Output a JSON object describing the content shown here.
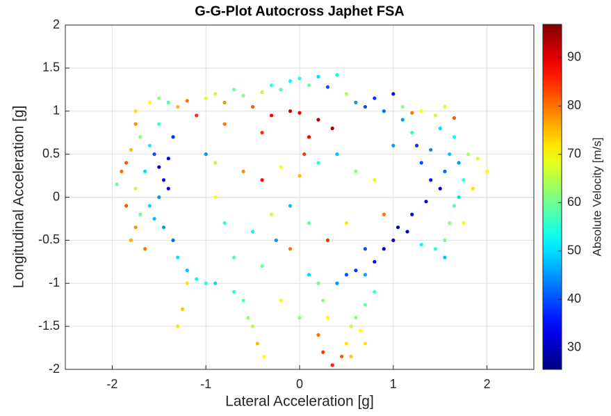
{
  "chart_data": {
    "type": "scatter",
    "title": "G-G-Plot Autocross Japhet FSA",
    "xlabel": "Lateral Acceleration [g]",
    "ylabel": "Longitudinal Acceleration [g]",
    "colorbar_label": "Absolute Velocity [m/s]",
    "colormap": "jet",
    "grid": true,
    "xlim": [
      -2.5,
      2.5
    ],
    "xticks": [
      -2,
      -1,
      0,
      1,
      2
    ],
    "ylim": [
      -2,
      2
    ],
    "yticks": [
      -2,
      -1.5,
      -1,
      -0.5,
      0,
      0.5,
      1,
      1.5,
      2
    ],
    "clim": [
      25.5,
      96.9
    ],
    "cticks": [
      30,
      40,
      50,
      60,
      70,
      80,
      90
    ],
    "x": [
      -1.75,
      -1.6,
      -1.5,
      -1.4,
      -1.3,
      -1.2,
      -1.1,
      -1.0,
      -0.9,
      -0.8,
      -0.7,
      -0.6,
      -0.5,
      -0.4,
      -0.3,
      -0.2,
      -0.1,
      0.0,
      0.1,
      0.2,
      0.3,
      0.4,
      0.5,
      0.6,
      0.7,
      0.8,
      0.9,
      1.0,
      1.1,
      1.2,
      1.3,
      1.45,
      1.55,
      1.65,
      -0.3,
      -0.1,
      0.0,
      0.2,
      0.35,
      -0.8,
      -0.4,
      0.1,
      -1.85,
      -1.9,
      -1.95,
      -1.8,
      -1.75,
      -1.7,
      -1.6,
      -1.55,
      -1.5,
      -1.45,
      -1.4,
      -1.5,
      -1.6,
      -1.7,
      -1.75,
      -1.8,
      -1.65,
      -1.55,
      -1.45,
      -1.35,
      -1.3,
      -1.2,
      -1.1,
      -1.0,
      -1.4,
      -1.35,
      -1.5,
      -1.65,
      -1.85,
      -1.75,
      1.1,
      1.2,
      1.25,
      1.3,
      1.4,
      1.5,
      1.55,
      1.6,
      1.65,
      1.7,
      1.75,
      1.7,
      1.65,
      1.6,
      1.55,
      1.45,
      1.3,
      1.15,
      1.05,
      1.2,
      1.35,
      1.8,
      1.9,
      2.0,
      1.85,
      1.75,
      1.4,
      1.5,
      1.55,
      1.0,
      -0.9,
      -0.7,
      -0.6,
      -0.55,
      -0.5,
      -0.45,
      -0.38,
      -1.2,
      -1.25,
      -1.3,
      0.2,
      0.25,
      0.3,
      0.2,
      0.25,
      0.35,
      0.45,
      0.5,
      0.55,
      0.6,
      0.65,
      0.7,
      0.55,
      0.4,
      0.5,
      0.6,
      0.7,
      0.8,
      0.9,
      1.0,
      0.8,
      0.7,
      -0.9,
      -0.6,
      -0.4,
      -0.2,
      0.0,
      0.2,
      0.4,
      0.6,
      0.8,
      -0.8,
      -0.5,
      -0.3,
      -0.1,
      0.1,
      0.3,
      0.5,
      0.7,
      -0.7,
      -0.4,
      -0.1,
      0.1,
      -0.2,
      0.0,
      -0.9,
      0.9,
      -1.0,
      0.05,
      -0.25
    ],
    "y": [
      1.0,
      1.1,
      1.15,
      1.1,
      1.05,
      1.12,
      0.95,
      1.15,
      1.2,
      1.1,
      1.25,
      1.18,
      1.05,
      1.22,
      1.3,
      1.25,
      1.35,
      1.38,
      1.3,
      1.4,
      1.28,
      1.42,
      1.2,
      1.1,
      1.05,
      1.15,
      1.0,
      1.2,
      1.05,
      0.98,
      1.0,
      0.95,
      1.05,
      0.92,
      0.95,
      1.0,
      0.98,
      0.9,
      0.8,
      0.85,
      0.75,
      0.7,
      0.4,
      0.3,
      0.15,
      0.55,
      0.85,
      0.7,
      0.6,
      0.5,
      0.35,
      0.2,
      0.1,
      0.0,
      -0.1,
      -0.2,
      -0.35,
      -0.5,
      -0.6,
      -0.25,
      -0.35,
      -0.5,
      -0.7,
      -0.85,
      -0.95,
      -1.0,
      0.45,
      0.7,
      0.85,
      0.3,
      -0.1,
      0.1,
      0.9,
      0.75,
      0.6,
      0.4,
      0.2,
      0.1,
      0.3,
      0.5,
      0.7,
      0.4,
      0.2,
      0.0,
      -0.1,
      -0.3,
      -0.5,
      -0.6,
      -0.55,
      -0.4,
      -0.35,
      -0.2,
      -0.05,
      0.5,
      0.45,
      0.3,
      0.1,
      -0.3,
      0.55,
      0.8,
      -0.7,
      0.6,
      -1.0,
      -1.1,
      -1.2,
      -1.4,
      -1.5,
      -1.7,
      -1.85,
      -1.0,
      -1.3,
      -1.5,
      -1.0,
      -1.2,
      -1.4,
      -1.6,
      -1.8,
      -1.95,
      -1.85,
      -1.7,
      -1.5,
      -1.4,
      -1.55,
      -1.7,
      -1.85,
      -1.0,
      -0.9,
      -0.85,
      -0.9,
      -0.75,
      -0.6,
      -0.5,
      -1.1,
      -1.25,
      0.4,
      0.3,
      0.2,
      0.35,
      0.25,
      0.4,
      0.5,
      0.3,
      0.2,
      -0.3,
      -0.4,
      -0.2,
      -0.1,
      -0.3,
      -0.5,
      -0.3,
      -0.6,
      -0.7,
      -0.8,
      -0.6,
      -0.9,
      -1.2,
      -1.4,
      0.0,
      -0.2,
      0.5,
      0.5,
      -0.5
    ],
    "c": [
      72,
      70,
      62,
      58,
      75,
      80,
      85,
      68,
      66,
      78,
      60,
      62,
      82,
      65,
      55,
      58,
      52,
      55,
      60,
      50,
      40,
      52,
      65,
      45,
      40,
      38,
      42,
      35,
      62,
      80,
      70,
      66,
      68,
      82,
      88,
      92,
      90,
      93,
      95,
      80,
      85,
      88,
      82,
      80,
      60,
      75,
      78,
      62,
      52,
      40,
      30,
      35,
      33,
      45,
      50,
      60,
      78,
      76,
      80,
      48,
      45,
      42,
      50,
      48,
      52,
      55,
      32,
      38,
      56,
      50,
      82,
      66,
      45,
      55,
      38,
      40,
      36,
      30,
      42,
      48,
      52,
      45,
      55,
      50,
      58,
      62,
      60,
      55,
      52,
      30,
      28,
      35,
      32,
      64,
      68,
      70,
      72,
      70,
      44,
      50,
      48,
      46,
      50,
      55,
      58,
      62,
      65,
      75,
      70,
      72,
      74,
      72,
      60,
      62,
      70,
      80,
      84,
      86,
      82,
      72,
      66,
      62,
      70,
      72,
      74,
      45,
      40,
      38,
      46,
      35,
      30,
      32,
      56,
      60,
      65,
      78,
      88,
      70,
      75,
      55,
      48,
      62,
      68,
      55,
      52,
      66,
      48,
      60,
      85,
      72,
      40,
      58,
      60,
      80,
      50,
      70,
      62,
      70,
      80,
      45,
      84,
      45
    ]
  }
}
